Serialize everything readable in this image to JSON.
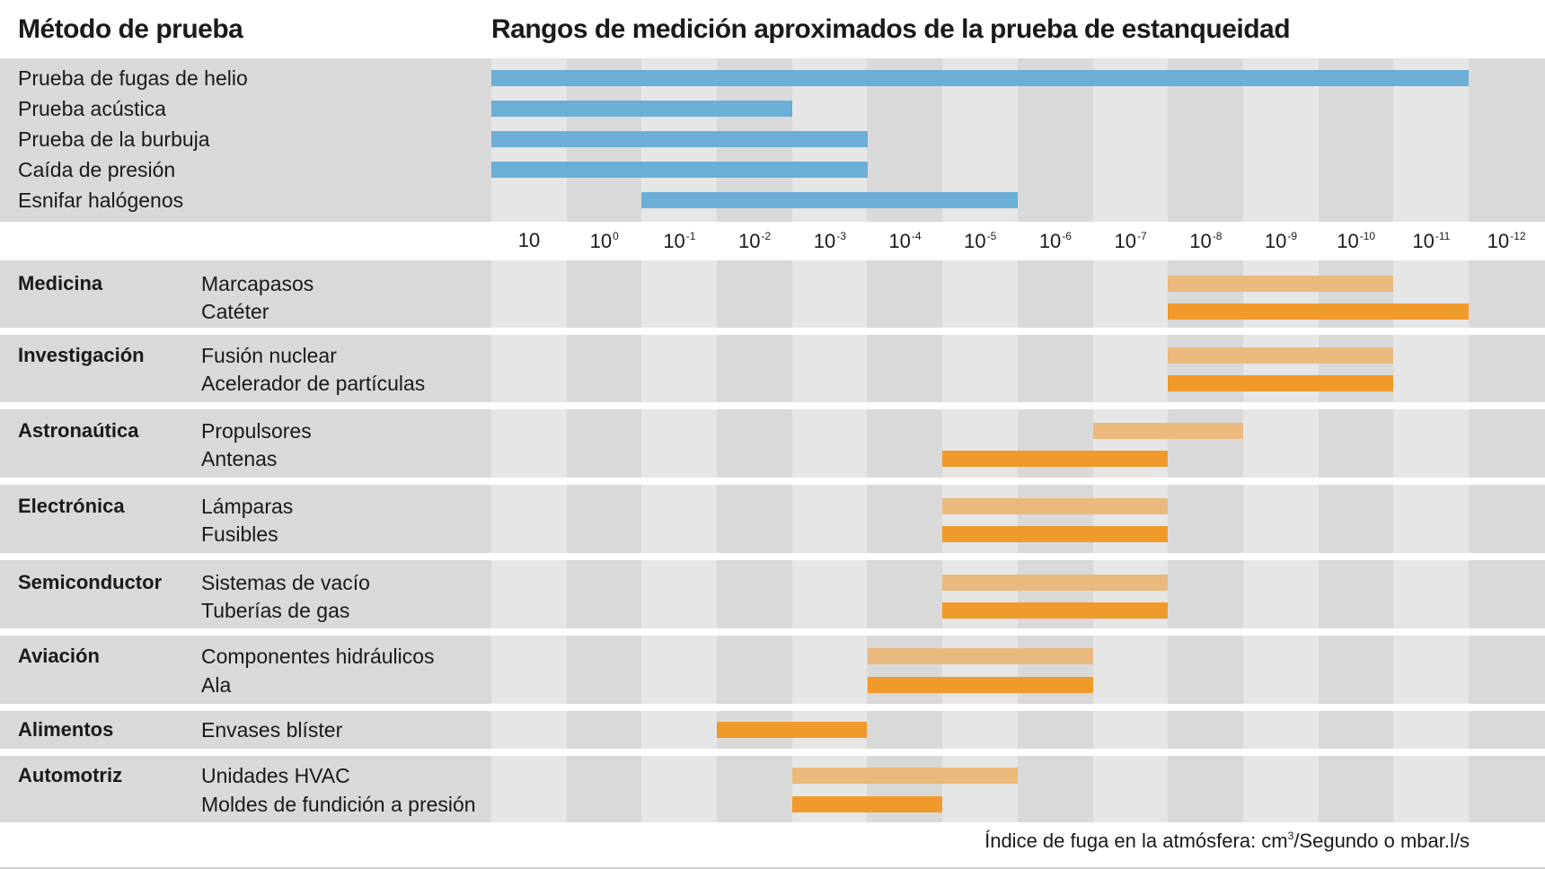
{
  "header": {
    "left_title": "Método de prueba",
    "chart_title": "Rangos de medición aproximados de la prueba de estanqueidad"
  },
  "footer": {
    "axis_label_pre": "Índice de fuga en la atmósfera: cm",
    "axis_label_sup": "3",
    "axis_label_post": "/Segundo o mbar.l/s"
  },
  "colors": {
    "method_bar": "#6baed6",
    "app_bar_light": "#eab97d",
    "app_bar_dark": "#f09a2c",
    "band_dark": "#d9d9d9",
    "band_light": "#e6e6e6"
  },
  "chart_data": {
    "type": "bar",
    "orientation": "horizontal",
    "title": "Rangos de medición aproximados de la prueba de estanqueidad",
    "xlabel": "Índice de fuga en la atmósfera: cm³/Segundo o mbar.l/s",
    "x_scale": "log",
    "x_direction": "decreasing",
    "x_ticks": [
      {
        "base": "10",
        "exp": "",
        "value": 10
      },
      {
        "base": "10",
        "exp": "0",
        "value": 1
      },
      {
        "base": "10",
        "exp": "-1",
        "value": 0.1
      },
      {
        "base": "10",
        "exp": "-2",
        "value": 0.01
      },
      {
        "base": "10",
        "exp": "-3",
        "value": 0.001
      },
      {
        "base": "10",
        "exp": "-4",
        "value": 0.0001
      },
      {
        "base": "10",
        "exp": "-5",
        "value": 1e-05
      },
      {
        "base": "10",
        "exp": "-6",
        "value": 1e-06
      },
      {
        "base": "10",
        "exp": "-7",
        "value": 1e-07
      },
      {
        "base": "10",
        "exp": "-8",
        "value": 1e-08
      },
      {
        "base": "10",
        "exp": "-9",
        "value": 1e-09
      },
      {
        "base": "10",
        "exp": "-10",
        "value": 1e-10
      },
      {
        "base": "10",
        "exp": "-11",
        "value": 1e-11
      },
      {
        "base": "10",
        "exp": "-12",
        "value": 1e-12
      }
    ],
    "methods": [
      {
        "name": "Prueba de fugas de helio",
        "from": 10,
        "to": 1e-12
      },
      {
        "name": "Prueba acústica",
        "from": 10,
        "to": 0.001
      },
      {
        "name": "Prueba de la burbuja",
        "from": 10,
        "to": 0.0001
      },
      {
        "name": "Caída de presión",
        "from": 10,
        "to": 0.0001
      },
      {
        "name": "Esnifar halógenos",
        "from": 0.1,
        "to": 1e-06
      }
    ],
    "applications": [
      {
        "category": "Medicina",
        "items": [
          {
            "name": "Marcapasos",
            "from": 1e-08,
            "to": 1e-11,
            "shade": "light"
          },
          {
            "name": "Catéter",
            "from": 1e-08,
            "to": 1e-12,
            "shade": "dark"
          }
        ]
      },
      {
        "category": "Investigación",
        "items": [
          {
            "name": "Fusión nuclear",
            "from": 1e-08,
            "to": 1e-11,
            "shade": "light"
          },
          {
            "name": "Acelerador de partículas",
            "from": 1e-08,
            "to": 1e-11,
            "shade": "dark"
          }
        ]
      },
      {
        "category": "Astronaútica",
        "items": [
          {
            "name": "Propulsores",
            "from": 1e-07,
            "to": 1e-09,
            "shade": "light"
          },
          {
            "name": "Antenas",
            "from": 1e-05,
            "to": 1e-08,
            "shade": "dark"
          }
        ]
      },
      {
        "category": "Electrónica",
        "items": [
          {
            "name": "Lámparas",
            "from": 1e-05,
            "to": 1e-08,
            "shade": "light"
          },
          {
            "name": "Fusibles",
            "from": 1e-05,
            "to": 1e-08,
            "shade": "dark"
          }
        ]
      },
      {
        "category": "Semiconductor",
        "items": [
          {
            "name": "Sistemas de vacío",
            "from": 1e-05,
            "to": 1e-08,
            "shade": "light"
          },
          {
            "name": "Tuberías de gas",
            "from": 1e-05,
            "to": 1e-08,
            "shade": "dark"
          }
        ]
      },
      {
        "category": "Aviación",
        "items": [
          {
            "name": "Componentes hidráulicos",
            "from": 0.0001,
            "to": 1e-07,
            "shade": "light"
          },
          {
            "name": "Ala",
            "from": 0.0001,
            "to": 1e-07,
            "shade": "dark"
          }
        ]
      },
      {
        "category": "Alimentos",
        "items": [
          {
            "name": "Envases blíster",
            "from": 0.01,
            "to": 0.0001,
            "shade": "dark"
          }
        ]
      },
      {
        "category": "Automotriz",
        "items": [
          {
            "name": "Unidades HVAC",
            "from": 0.001,
            "to": 1e-06,
            "shade": "light"
          },
          {
            "name": "Moldes de fundición a presión",
            "from": 0.001,
            "to": 1e-05,
            "shade": "dark"
          }
        ]
      }
    ]
  }
}
